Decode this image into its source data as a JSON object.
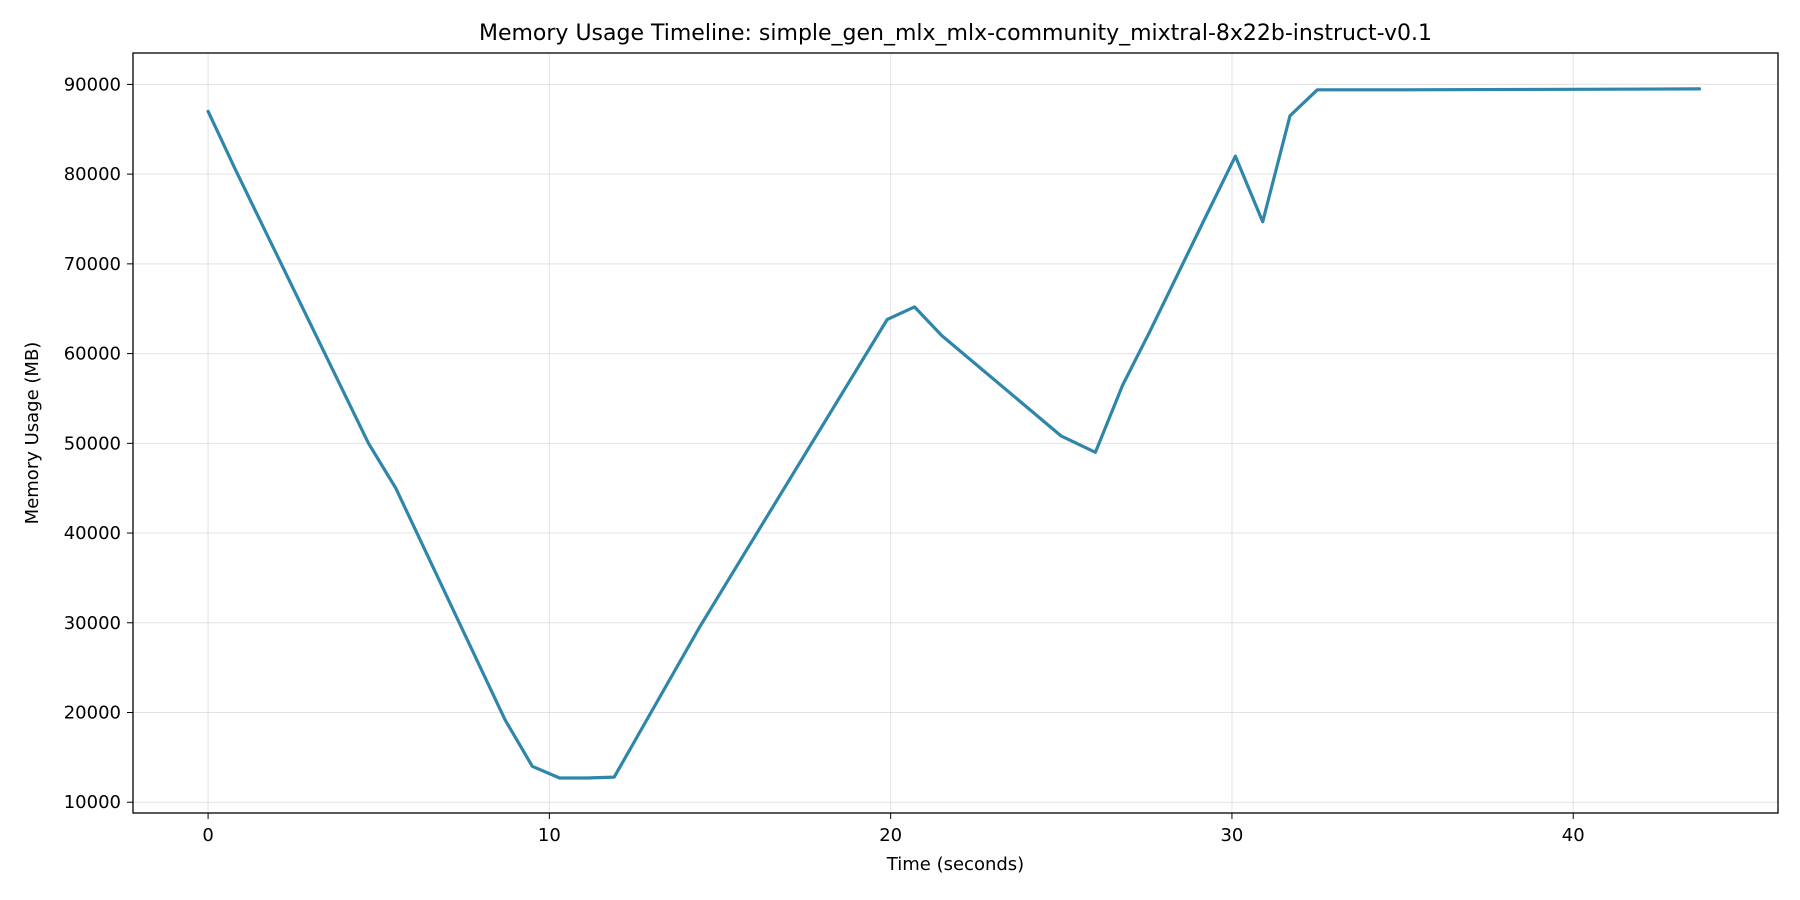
{
  "chart_data": {
    "type": "line",
    "title": "Memory Usage Timeline: simple_gen_mlx_mlx-community_mixtral-8x22b-instruct-v0.1",
    "xlabel": "Time (seconds)",
    "ylabel": "Memory Usage (MB)",
    "xlim": [
      -2.2,
      46
    ],
    "ylim": [
      8800,
      93500
    ],
    "xticks": [
      0,
      10,
      20,
      30,
      40
    ],
    "yticks": [
      10000,
      20000,
      30000,
      40000,
      50000,
      60000,
      70000,
      80000,
      90000
    ],
    "grid": true,
    "colors": {
      "line": "#2e86ab"
    },
    "series": [
      {
        "x": [
          0,
          0.8,
          4.7,
          5.5,
          8.7,
          9.5,
          10.3,
          11.1,
          11.9,
          14.4,
          15.2,
          19.9,
          20.7,
          21.5,
          25.0,
          26.0,
          26.8,
          27.6,
          29.2,
          30.1,
          30.9,
          31.7,
          32.5,
          35,
          40,
          43.7
        ],
        "y": [
          87000,
          80500,
          50000,
          45000,
          19200,
          14000,
          12700,
          12700,
          12800,
          29500,
          34500,
          63800,
          65200,
          62000,
          50800,
          49000,
          56500,
          62500,
          75000,
          82000,
          74700,
          86500,
          89400,
          89400,
          89450,
          89500
        ]
      }
    ]
  }
}
